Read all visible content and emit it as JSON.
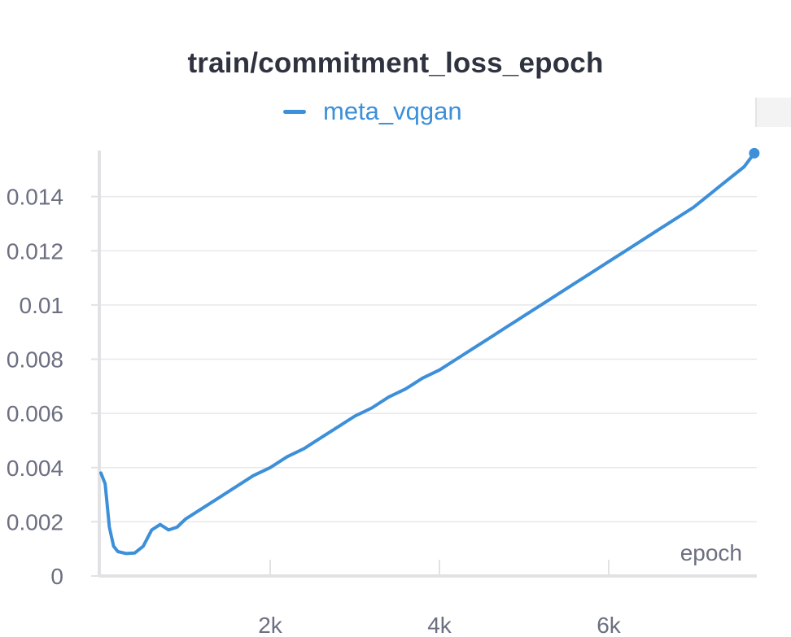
{
  "panel": {
    "title": "train/commitment_loss_epoch",
    "legend": [
      {
        "name": "meta_vqgan",
        "color": "#3d8fd9"
      }
    ]
  },
  "colors": {
    "series": "#3d8fd9",
    "grid": "#e8e8ea",
    "axis": "#e2e2e4",
    "tick_text": "#6b6f80",
    "title_text": "#2f3340"
  },
  "chart_data": {
    "type": "line",
    "title": "train/commitment_loss_epoch",
    "xlabel": "epoch",
    "ylabel": "",
    "xlim": [
      0,
      7750
    ],
    "ylim": [
      0,
      0.0157
    ],
    "x_ticks": [
      2000,
      4000,
      6000
    ],
    "x_tick_labels": [
      "2k",
      "4k",
      "6k"
    ],
    "y_ticks": [
      0,
      0.002,
      0.004,
      0.006,
      0.008,
      0.01,
      0.012,
      0.014
    ],
    "y_tick_labels": [
      "0",
      "0.002",
      "0.004",
      "0.006",
      "0.008",
      "0.01",
      "0.012",
      "0.014"
    ],
    "grid": true,
    "legend_position": "top-center",
    "series": [
      {
        "name": "meta_vqgan",
        "color": "#3d8fd9",
        "x": [
          0,
          50,
          100,
          150,
          200,
          300,
          400,
          500,
          600,
          700,
          800,
          900,
          1000,
          1200,
          1400,
          1600,
          1800,
          2000,
          2200,
          2400,
          2600,
          2800,
          3000,
          3200,
          3400,
          3600,
          3800,
          4000,
          4200,
          4400,
          4600,
          4800,
          5000,
          5200,
          5400,
          5600,
          5800,
          6000,
          6200,
          6400,
          6600,
          6800,
          7000,
          7200,
          7400,
          7600,
          7720
        ],
        "y": [
          0.0038,
          0.0034,
          0.0018,
          0.0011,
          0.0009,
          0.00083,
          0.00085,
          0.0011,
          0.0017,
          0.0019,
          0.0017,
          0.0018,
          0.0021,
          0.0025,
          0.0029,
          0.0033,
          0.0037,
          0.004,
          0.0044,
          0.0047,
          0.0051,
          0.0055,
          0.0059,
          0.0062,
          0.0066,
          0.0069,
          0.0073,
          0.0076,
          0.008,
          0.0084,
          0.0088,
          0.0092,
          0.0096,
          0.01,
          0.0104,
          0.0108,
          0.0112,
          0.0116,
          0.012,
          0.0124,
          0.0128,
          0.0132,
          0.0136,
          0.0141,
          0.0146,
          0.0151,
          0.0156
        ]
      }
    ]
  }
}
